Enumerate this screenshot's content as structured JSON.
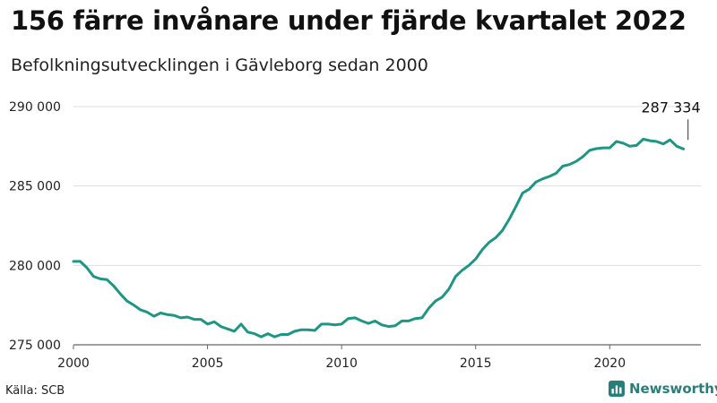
{
  "header": {
    "title": "156 färre invånare under fjärde kvartalet 2022",
    "subtitle": "Befolkningsutvecklingen i Gävleborg sedan 2000"
  },
  "footer": {
    "source": "Källa: SCB",
    "brand": "Newsworthy"
  },
  "colors": {
    "line": "#1f9683",
    "grid": "#dddddd",
    "axis": "#666666",
    "brand": "#2a7e7a"
  },
  "chart_data": {
    "type": "line",
    "title": "156 färre invånare under fjärde kvartalet 2022",
    "subtitle": "Befolkningsutvecklingen i Gävleborg sedan 2000",
    "xlabel": "",
    "ylabel": "",
    "xlim": [
      2000,
      2023.4
    ],
    "ylim": [
      275000,
      290000
    ],
    "x_ticks": [
      2000,
      2005,
      2010,
      2015,
      2020
    ],
    "x_tick_labels": [
      "2000",
      "2005",
      "2010",
      "2015",
      "2020"
    ],
    "y_ticks": [
      275000,
      280000,
      285000,
      290000
    ],
    "y_tick_labels": [
      "275 000",
      "280 000",
      "285 000",
      "290 000"
    ],
    "grid": "horizontal",
    "annotation": {
      "label": "287 334",
      "x": 2022.92,
      "y": 287334
    },
    "series": [
      {
        "x": [
          2000,
          2000.25,
          2000.5,
          2000.75,
          2001,
          2001.25,
          2001.5,
          2001.75,
          2002,
          2002.25,
          2002.5,
          2002.75,
          2003,
          2003.25,
          2003.5,
          2003.75,
          2004,
          2004.25,
          2004.5,
          2004.75,
          2005,
          2005.25,
          2005.5,
          2005.75,
          2006,
          2006.25,
          2006.5,
          2006.75,
          2007,
          2007.25,
          2007.5,
          2007.75,
          2008,
          2008.25,
          2008.5,
          2008.75,
          2009,
          2009.25,
          2009.5,
          2009.75,
          2010,
          2010.25,
          2010.5,
          2010.75,
          2011,
          2011.25,
          2011.5,
          2011.75,
          2012,
          2012.25,
          2012.5,
          2012.75,
          2013,
          2013.25,
          2013.5,
          2013.75,
          2014,
          2014.25,
          2014.5,
          2014.75,
          2015,
          2015.25,
          2015.5,
          2015.75,
          2016,
          2016.25,
          2016.5,
          2016.75,
          2017,
          2017.25,
          2017.5,
          2017.75,
          2018,
          2018.25,
          2018.5,
          2018.75,
          2019,
          2019.25,
          2019.5,
          2019.75,
          2020,
          2020.25,
          2020.5,
          2020.75,
          2021,
          2021.25,
          2021.5,
          2021.75,
          2022,
          2022.25,
          2022.5,
          2022.75
        ],
        "values": [
          280250,
          280250,
          279850,
          279300,
          279150,
          279100,
          278700,
          278200,
          277750,
          277500,
          277200,
          277050,
          276800,
          277000,
          276900,
          276850,
          276700,
          276750,
          276600,
          276600,
          276300,
          276450,
          276150,
          276000,
          275850,
          276300,
          275800,
          275700,
          275500,
          275700,
          275500,
          275650,
          275650,
          275850,
          275950,
          275950,
          275900,
          276300,
          276300,
          276250,
          276300,
          276650,
          276700,
          276500,
          276350,
          276500,
          276250,
          276150,
          276200,
          276500,
          276500,
          276650,
          276700,
          277300,
          277750,
          278000,
          278500,
          279300,
          279700,
          280000,
          280400,
          281000,
          281450,
          281750,
          282200,
          282900,
          283700,
          284550,
          284800,
          285250,
          285450,
          285600,
          285800,
          286250,
          286350,
          286550,
          286850,
          287250,
          287350,
          287400,
          287400,
          287800,
          287700,
          287500,
          287550,
          287950,
          287850,
          287800,
          287650,
          287900,
          287500,
          287334
        ]
      }
    ]
  }
}
